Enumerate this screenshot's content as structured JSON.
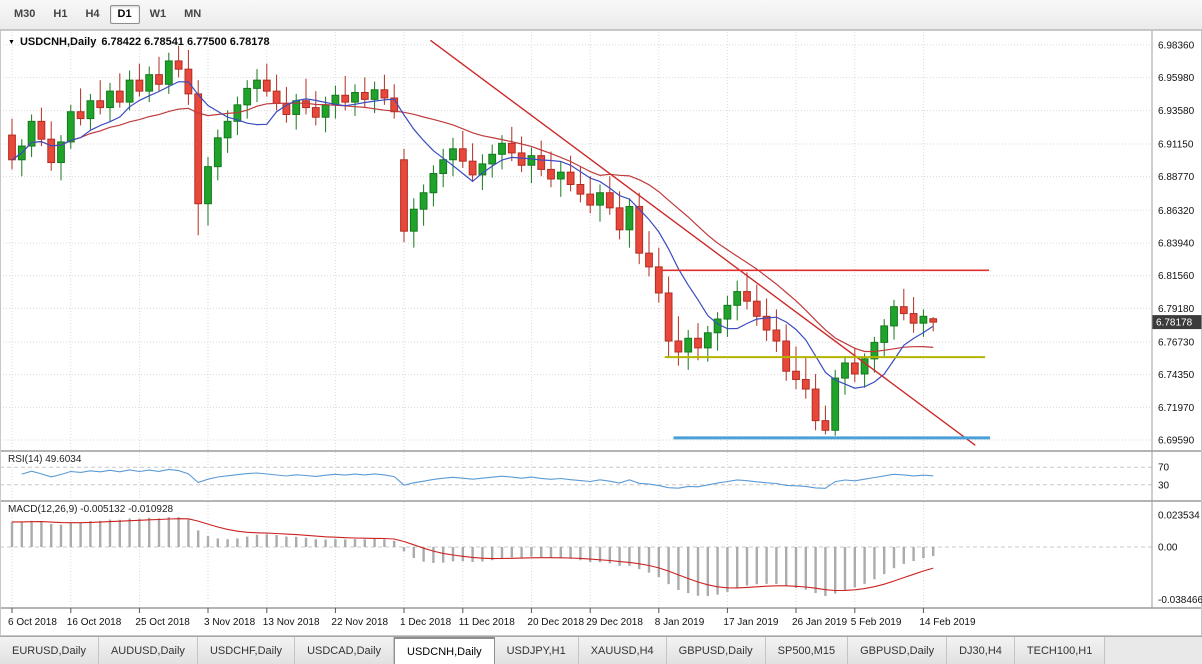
{
  "toolbar": {
    "timeframes": [
      "M30",
      "H1",
      "H4",
      "D1",
      "W1",
      "MN"
    ],
    "active_timeframe": "D1"
  },
  "chart": {
    "symbol": "USDCNH,Daily",
    "ohlc_text": "6.78422 6.78541 6.77500 6.78178",
    "current_price": "6.78178",
    "price_axis_labels": [
      "6.98360",
      "6.95980",
      "6.93580",
      "6.91150",
      "6.88770",
      "6.86320",
      "6.83940",
      "6.81560",
      "6.79180",
      "6.76730",
      "6.74350",
      "6.71970",
      "6.69590"
    ],
    "date_axis_labels": [
      "6 Oct 2018",
      "16 Oct 2018",
      "25 Oct 2018",
      "3 Nov 2018",
      "13 Nov 2018",
      "22 Nov 2018",
      "1 Dec 2018",
      "11 Dec 2018",
      "20 Dec 2018",
      "29 Dec 2018",
      "8 Jan 2019",
      "17 Jan 2019",
      "26 Jan 2019",
      "5 Feb 2019",
      "14 Feb 2019"
    ],
    "date_tick_indices": [
      0,
      6,
      13,
      20,
      26,
      33,
      40,
      46,
      53,
      59,
      66,
      73,
      80,
      86,
      93
    ],
    "colors": {
      "bull": "#1fa32a",
      "bull_border": "#14791d",
      "bear": "#e8483b",
      "bear_border": "#b22d22",
      "ma_fast": "#3b4cc0",
      "ma_slow": "#c03b3b",
      "trendline": "#cc2a2a",
      "resistance": "#e03030",
      "support_yellow": "#b5b500",
      "support_blue": "#4aa0d8",
      "grid": "#dadada",
      "rsi_line": "#5b9bd5",
      "macd_hist": "#ababab",
      "macd_signal": "#cc2222",
      "badge_bg": "#3c3c3c",
      "badge_text": "#ffffff"
    }
  },
  "rsi_panel": {
    "label": "RSI(14) 49.6034",
    "level_labels": [
      "70",
      "30"
    ]
  },
  "macd_panel": {
    "label": "MACD(12,26,9) -0.005132 -0.010928",
    "axis_labels": [
      "0.023534",
      "0.00",
      "-0.038466"
    ]
  },
  "tabs": [
    "EURUSD,Daily",
    "AUDUSD,Daily",
    "USDCHF,Daily",
    "USDCAD,Daily",
    "USDCNH,Daily",
    "USDJPY,H1",
    "XAUUSD,H4",
    "GBPUSD,Daily",
    "SP500,M15",
    "GBPUSD,Daily",
    "DJ30,H4",
    "TECH100,H1"
  ],
  "active_tab_index": 4,
  "chart_data": {
    "type": "candlestick",
    "symbol": "USDCNH",
    "timeframe": "Daily",
    "last_ohlc": {
      "open": 6.78422,
      "high": 6.78541,
      "low": 6.775,
      "close": 6.78178
    },
    "price_axis_range": [
      6.6959,
      6.9836
    ],
    "candles_ohlc": [
      [
        6.918,
        6.93,
        6.893,
        6.9
      ],
      [
        6.9,
        6.915,
        6.888,
        6.91
      ],
      [
        6.91,
        6.933,
        6.902,
        6.928
      ],
      [
        6.928,
        6.938,
        6.91,
        6.915
      ],
      [
        6.915,
        6.928,
        6.892,
        6.898
      ],
      [
        6.898,
        6.918,
        6.885,
        6.913
      ],
      [
        6.913,
        6.94,
        6.908,
        6.935
      ],
      [
        6.935,
        6.952,
        6.925,
        6.93
      ],
      [
        6.93,
        6.948,
        6.922,
        6.943
      ],
      [
        6.943,
        6.958,
        6.933,
        6.938
      ],
      [
        6.938,
        6.956,
        6.928,
        6.95
      ],
      [
        6.95,
        6.963,
        6.938,
        6.942
      ],
      [
        6.942,
        6.965,
        6.936,
        6.958
      ],
      [
        6.958,
        6.97,
        6.946,
        6.95
      ],
      [
        6.95,
        6.968,
        6.942,
        6.962
      ],
      [
        6.962,
        6.975,
        6.95,
        6.955
      ],
      [
        6.955,
        6.978,
        6.948,
        6.972
      ],
      [
        6.972,
        6.983,
        6.96,
        6.966
      ],
      [
        6.966,
        6.98,
        6.94,
        6.948
      ],
      [
        6.948,
        6.958,
        6.845,
        6.868
      ],
      [
        6.868,
        6.902,
        6.852,
        6.895
      ],
      [
        6.895,
        6.922,
        6.885,
        6.916
      ],
      [
        6.916,
        6.936,
        6.905,
        6.928
      ],
      [
        6.928,
        6.946,
        6.918,
        6.94
      ],
      [
        6.94,
        6.958,
        6.93,
        6.952
      ],
      [
        6.952,
        6.966,
        6.942,
        6.958
      ],
      [
        6.958,
        6.97,
        6.946,
        6.95
      ],
      [
        6.95,
        6.962,
        6.936,
        6.941
      ],
      [
        6.941,
        6.953,
        6.927,
        6.933
      ],
      [
        6.933,
        6.948,
        6.922,
        6.943
      ],
      [
        6.943,
        6.959,
        6.933,
        6.938
      ],
      [
        6.938,
        6.95,
        6.925,
        6.931
      ],
      [
        6.931,
        6.946,
        6.92,
        6.94
      ],
      [
        6.94,
        6.954,
        6.93,
        6.947
      ],
      [
        6.947,
        6.961,
        6.936,
        6.942
      ],
      [
        6.942,
        6.955,
        6.932,
        6.949
      ],
      [
        6.949,
        6.96,
        6.938,
        6.944
      ],
      [
        6.944,
        6.957,
        6.934,
        6.951
      ],
      [
        6.951,
        6.962,
        6.94,
        6.945
      ],
      [
        6.945,
        6.955,
        6.93,
        6.935
      ],
      [
        6.9,
        6.908,
        6.84,
        6.848
      ],
      [
        6.848,
        6.872,
        6.836,
        6.864
      ],
      [
        6.864,
        6.882,
        6.852,
        6.876
      ],
      [
        6.876,
        6.896,
        6.866,
        6.89
      ],
      [
        6.89,
        6.908,
        6.88,
        6.9
      ],
      [
        6.9,
        6.916,
        6.888,
        6.908
      ],
      [
        6.908,
        6.921,
        6.894,
        6.899
      ],
      [
        6.899,
        6.912,
        6.884,
        6.889
      ],
      [
        6.889,
        6.904,
        6.878,
        6.897
      ],
      [
        6.897,
        6.911,
        6.887,
        6.904
      ],
      [
        6.904,
        6.918,
        6.893,
        6.912
      ],
      [
        6.912,
        6.924,
        6.899,
        6.905
      ],
      [
        6.905,
        6.917,
        6.891,
        6.896
      ],
      [
        6.896,
        6.909,
        6.883,
        6.903
      ],
      [
        6.903,
        6.914,
        6.888,
        6.893
      ],
      [
        6.893,
        6.906,
        6.88,
        6.886
      ],
      [
        6.886,
        6.899,
        6.873,
        6.891
      ],
      [
        6.891,
        6.903,
        6.877,
        6.882
      ],
      [
        6.882,
        6.895,
        6.869,
        6.875
      ],
      [
        6.875,
        6.888,
        6.861,
        6.867
      ],
      [
        6.867,
        6.882,
        6.855,
        6.876
      ],
      [
        6.876,
        6.888,
        6.86,
        6.865
      ],
      [
        6.865,
        6.877,
        6.842,
        6.849
      ],
      [
        6.849,
        6.872,
        6.836,
        6.866
      ],
      [
        6.866,
        6.876,
        6.824,
        6.832
      ],
      [
        6.832,
        6.848,
        6.815,
        6.822
      ],
      [
        6.822,
        6.836,
        6.796,
        6.803
      ],
      [
        6.803,
        6.815,
        6.756,
        6.768
      ],
      [
        6.768,
        6.786,
        6.75,
        6.76
      ],
      [
        6.76,
        6.776,
        6.747,
        6.77
      ],
      [
        6.77,
        6.781,
        6.754,
        6.763
      ],
      [
        6.763,
        6.779,
        6.753,
        6.774
      ],
      [
        6.774,
        6.789,
        6.761,
        6.784
      ],
      [
        6.784,
        6.801,
        6.771,
        6.794
      ],
      [
        6.794,
        6.812,
        6.783,
        6.804
      ],
      [
        6.804,
        6.818,
        6.791,
        6.797
      ],
      [
        6.797,
        6.809,
        6.779,
        6.786
      ],
      [
        6.786,
        6.799,
        6.768,
        6.776
      ],
      [
        6.776,
        6.791,
        6.76,
        6.768
      ],
      [
        6.768,
        6.78,
        6.739,
        6.746
      ],
      [
        6.746,
        6.764,
        6.733,
        6.74
      ],
      [
        6.74,
        6.756,
        6.726,
        6.733
      ],
      [
        6.733,
        6.744,
        6.703,
        6.71
      ],
      [
        6.71,
        6.721,
        6.7,
        6.703
      ],
      [
        6.703,
        6.747,
        6.699,
        6.741
      ],
      [
        6.741,
        6.757,
        6.729,
        6.752
      ],
      [
        6.752,
        6.763,
        6.738,
        6.744
      ],
      [
        6.744,
        6.759,
        6.734,
        6.755
      ],
      [
        6.755,
        6.771,
        6.745,
        6.767
      ],
      [
        6.767,
        6.784,
        6.757,
        6.779
      ],
      [
        6.779,
        6.798,
        6.769,
        6.793
      ],
      [
        6.793,
        6.806,
        6.783,
        6.788
      ],
      [
        6.788,
        6.8,
        6.774,
        6.781
      ],
      [
        6.781,
        6.791,
        6.771,
        6.786
      ],
      [
        6.78422,
        6.78541,
        6.775,
        6.78178
      ]
    ],
    "overlays": {
      "ma_fast_period": 8,
      "ma_slow_period": 21,
      "trendline": {
        "i1": 42.7,
        "p1": 6.987,
        "i2": 98.3,
        "p2": 6.692
      },
      "hlines": [
        {
          "name": "resistance-line",
          "price": 6.8195,
          "i1": 66.3,
          "i2": 99.7,
          "color_key": "resistance",
          "width": 1.6
        },
        {
          "name": "support-line-yellow",
          "price": 6.7563,
          "i1": 66.6,
          "i2": 99.3,
          "color_key": "support_yellow",
          "width": 2
        },
        {
          "name": "support-line-blue",
          "price": 6.6975,
          "i1": 67.5,
          "i2": 99.8,
          "color_key": "support_blue",
          "width": 3
        }
      ]
    },
    "rsi": {
      "period": 14,
      "last_value": 49.6034,
      "levels": [
        70,
        30
      ]
    },
    "macd": {
      "fast": 12,
      "slow": 26,
      "signal": 9,
      "last_main": -0.005132,
      "last_signal": -0.010928,
      "axis_max": 0.023534,
      "axis_min": -0.038466
    }
  }
}
